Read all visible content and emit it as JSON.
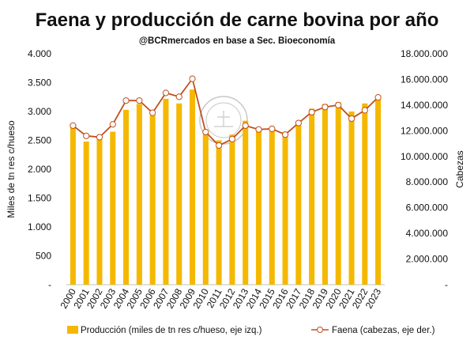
{
  "chart_data": {
    "type": "bar+line",
    "title": "Faena y producción de carne bovina por año",
    "subtitle": "@BCRmercados  en base a Sec. Bioeconomía",
    "categories": [
      "2000",
      "2001",
      "2002",
      "2003",
      "2004",
      "2005",
      "2006",
      "2007",
      "2008",
      "2009",
      "2010",
      "2011",
      "2012",
      "2013",
      "2014",
      "2015",
      "2016",
      "2017",
      "2018",
      "2019",
      "2020",
      "2021",
      "2022",
      "2023"
    ],
    "series": [
      {
        "name": "Producción (miles de tn res c/hueso, eje izq.)",
        "type": "bar",
        "axis": "left",
        "color": "#F5B800",
        "values": [
          2720,
          2480,
          2530,
          2650,
          3030,
          3130,
          2980,
          3220,
          3140,
          3380,
          2630,
          2500,
          2600,
          2840,
          2670,
          2730,
          2650,
          2840,
          3050,
          3130,
          3160,
          3000,
          3140,
          3220
        ]
      },
      {
        "name": "Faena (cabezas, eje der.)",
        "type": "line",
        "axis": "right",
        "color": "#C0501E",
        "values": [
          12400000,
          11600000,
          11500000,
          12500000,
          14350000,
          14350000,
          13400000,
          14950000,
          14650000,
          16050000,
          11900000,
          10850000,
          11350000,
          12400000,
          12100000,
          12150000,
          11700000,
          12600000,
          13450000,
          13850000,
          14000000,
          12950000,
          13600000,
          14600000
        ]
      }
    ],
    "ylabel_left": "Miles de tn res c/hueso",
    "ylabel_right": "Cabezas",
    "ylim_left": [
      0,
      4000
    ],
    "ylim_right": [
      0,
      18000000
    ],
    "yticks_left": [
      "-",
      "500",
      "1.000",
      "1.500",
      "2.000",
      "2.500",
      "3.000",
      "3.500",
      "4.000"
    ],
    "yticks_right": [
      "-",
      "2.000.000",
      "4.000.000",
      "6.000.000",
      "8.000.000",
      "10.000.000",
      "12.000.000",
      "14.000.000",
      "16.000.000",
      "18.000.000"
    ],
    "watermark": "BOLSA DE COMERCIO DE ROSARIO",
    "legend": {
      "position": "bottom",
      "bar_label": "Producción (miles de tn res c/hueso, eje izq.)",
      "line_label": "Faena (cabezas, eje der.)"
    },
    "grid": false
  }
}
